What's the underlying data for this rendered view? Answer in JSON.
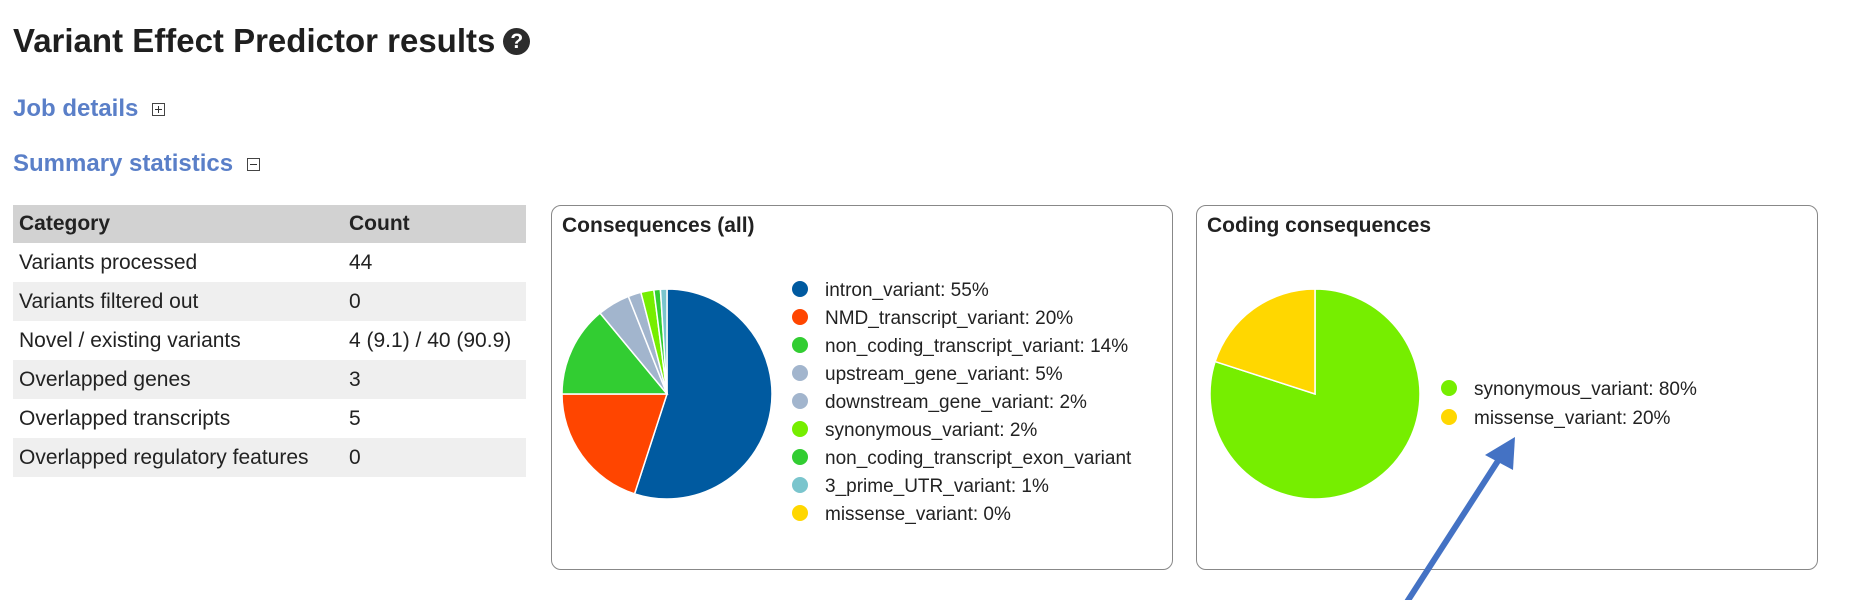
{
  "page": {
    "title": "Variant Effect Predictor results",
    "help_icon": "?"
  },
  "sections": {
    "job_details": "Job details",
    "summary_statistics": "Summary statistics"
  },
  "stats": {
    "headers": [
      "Category",
      "Count"
    ],
    "rows": [
      [
        "Variants processed",
        "44"
      ],
      [
        "Variants filtered out",
        "0"
      ],
      [
        "Novel / existing variants",
        "4 (9.1) / 40 (90.9)"
      ],
      [
        "Overlapped genes",
        "3"
      ],
      [
        "Overlapped transcripts",
        "5"
      ],
      [
        "Overlapped regulatory features",
        "0"
      ]
    ]
  },
  "chart_data": [
    {
      "type": "pie",
      "title": "Consequences (all)",
      "legend_position": "right",
      "slices": [
        {
          "label": "intron_variant: 55%",
          "value": 55,
          "color": "#005aa0"
        },
        {
          "label": "NMD_transcript_variant: 20%",
          "value": 20,
          "color": "#ff4500"
        },
        {
          "label": "non_coding_transcript_variant: 14%",
          "value": 14,
          "color": "#32cd32"
        },
        {
          "label": "upstream_gene_variant: 5%",
          "value": 5,
          "color": "#a2b5cd"
        },
        {
          "label": "downstream_gene_variant: 2%",
          "value": 2,
          "color": "#a2b5cd"
        },
        {
          "label": "synonymous_variant: 2%",
          "value": 2,
          "color": "#76ee00"
        },
        {
          "label": "non_coding_transcript_exon_variant",
          "value": 1,
          "color": "#32cd32"
        },
        {
          "label": "3_prime_UTR_variant: 1%",
          "value": 1,
          "color": "#7ac5cd"
        },
        {
          "label": "missense_variant: 0%",
          "value": 0,
          "color": "#ffd700"
        }
      ]
    },
    {
      "type": "pie",
      "title": "Coding consequences",
      "legend_position": "right",
      "slices": [
        {
          "label": "synonymous_variant: 80%",
          "value": 80,
          "color": "#76ee00"
        },
        {
          "label": "missense_variant: 20%",
          "value": 20,
          "color": "#ffd700"
        }
      ]
    }
  ],
  "annotation": {
    "arrow_color": "#4472c4"
  }
}
